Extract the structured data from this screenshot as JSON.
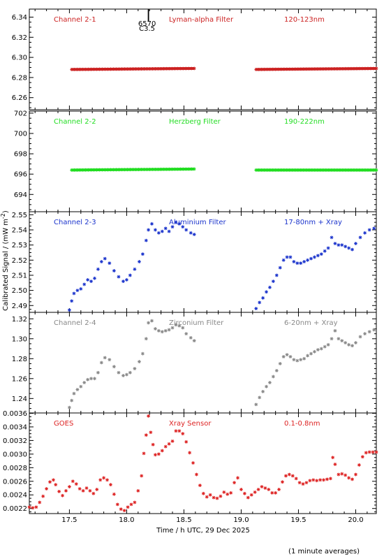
{
  "chart_data": {
    "type": "scatter",
    "xlabel": "Time / h UTC, 29 Dec 2025",
    "ylabel": "Calibrated Signal / (mW m",
    "ylabel_sup": "-2",
    "ylabel_end": ")",
    "footnote": "(1 minute averages)",
    "xlim": [
      17.15,
      20.18
    ],
    "x_ticks": [
      17.5,
      18.0,
      18.5,
      19.0,
      19.5,
      20.0
    ],
    "x_tick_labels": [
      "17.5",
      "18.0",
      "18.5",
      "19.0",
      "19.5",
      "20.0"
    ],
    "marker_text": [
      "6570",
      "C3.5"
    ],
    "marker_x": 18.19,
    "panels": [
      {
        "name": "Channel 2-1",
        "filter": "Lyman-alpha Filter",
        "band": "120-123nm",
        "color": "#cc2222",
        "ylim": [
          6.248,
          6.348
        ],
        "yticks": [
          6.26,
          6.28,
          6.3,
          6.32,
          6.34
        ],
        "ytick_labels": [
          "6.26",
          "6.28",
          "6.30",
          "6.32",
          "6.34"
        ],
        "segments": [
          {
            "x": [
              17.52,
              18.59
            ],
            "y": [
              6.288,
              6.289
            ]
          },
          {
            "x": [
              19.13,
              20.18
            ],
            "y": [
              6.288,
              6.289
            ]
          }
        ]
      },
      {
        "name": "Channel 2-2",
        "filter": "Herzberg Filter",
        "band": "190-222nm",
        "color": "#22dd22",
        "ylim": [
          692.3,
          702.2
        ],
        "yticks": [
          694,
          696,
          698,
          700,
          702
        ],
        "ytick_labels": [
          "694",
          "696",
          "698",
          "700",
          "702"
        ],
        "segments": [
          {
            "x": [
              17.52,
              18.59
            ],
            "y": [
              696.4,
              696.5
            ]
          },
          {
            "x": [
              19.13,
              20.18
            ],
            "y": [
              696.4,
              696.4
            ]
          }
        ]
      },
      {
        "name": "Channel 2-3",
        "filter": "Aluminium Filter",
        "band": "17-80nm + Xray",
        "color": "#1a33cc",
        "ylim": [
          2.4855,
          2.552
        ],
        "yticks": [
          2.49,
          2.5,
          2.51,
          2.52,
          2.53,
          2.54,
          2.55
        ],
        "ytick_labels": [
          "2.49",
          "2.50",
          "2.51",
          "2.52",
          "2.53",
          "2.54",
          "2.55"
        ],
        "points": [
          [
            17.5,
            2.487
          ],
          [
            17.52,
            2.493
          ],
          [
            17.54,
            2.498
          ],
          [
            17.57,
            2.5
          ],
          [
            17.6,
            2.501
          ],
          [
            17.63,
            2.504
          ],
          [
            17.66,
            2.507
          ],
          [
            17.69,
            2.506
          ],
          [
            17.72,
            2.508
          ],
          [
            17.75,
            2.514
          ],
          [
            17.78,
            2.519
          ],
          [
            17.81,
            2.521
          ],
          [
            17.85,
            2.518
          ],
          [
            17.89,
            2.513
          ],
          [
            17.93,
            2.509
          ],
          [
            17.97,
            2.506
          ],
          [
            18.0,
            2.507
          ],
          [
            18.03,
            2.51
          ],
          [
            18.07,
            2.514
          ],
          [
            18.11,
            2.519
          ],
          [
            18.14,
            2.524
          ],
          [
            18.17,
            2.533
          ],
          [
            18.19,
            2.54
          ],
          [
            18.22,
            2.544
          ],
          [
            18.25,
            2.54
          ],
          [
            18.28,
            2.538
          ],
          [
            18.31,
            2.539
          ],
          [
            18.34,
            2.541
          ],
          [
            18.37,
            2.539
          ],
          [
            18.4,
            2.542
          ],
          [
            18.43,
            2.545
          ],
          [
            18.46,
            2.544
          ],
          [
            18.49,
            2.542
          ],
          [
            18.52,
            2.54
          ],
          [
            18.56,
            2.538
          ],
          [
            18.59,
            2.537
          ],
          [
            19.13,
            2.488
          ],
          [
            19.16,
            2.492
          ],
          [
            19.19,
            2.495
          ],
          [
            19.22,
            2.499
          ],
          [
            19.25,
            2.502
          ],
          [
            19.28,
            2.506
          ],
          [
            19.31,
            2.51
          ],
          [
            19.34,
            2.515
          ],
          [
            19.37,
            2.52
          ],
          [
            19.4,
            2.522
          ],
          [
            19.43,
            2.522
          ],
          [
            19.46,
            2.519
          ],
          [
            19.49,
            2.518
          ],
          [
            19.52,
            2.518
          ],
          [
            19.55,
            2.519
          ],
          [
            19.58,
            2.52
          ],
          [
            19.61,
            2.521
          ],
          [
            19.64,
            2.522
          ],
          [
            19.67,
            2.523
          ],
          [
            19.7,
            2.524
          ],
          [
            19.73,
            2.526
          ],
          [
            19.76,
            2.528
          ],
          [
            19.79,
            2.535
          ],
          [
            19.82,
            2.531
          ],
          [
            19.85,
            2.53
          ],
          [
            19.88,
            2.53
          ],
          [
            19.91,
            2.529
          ],
          [
            19.94,
            2.528
          ],
          [
            19.97,
            2.527
          ],
          [
            20.0,
            2.531
          ],
          [
            20.04,
            2.535
          ],
          [
            20.08,
            2.538
          ],
          [
            20.12,
            2.54
          ],
          [
            20.16,
            2.541
          ]
        ]
      },
      {
        "name": "Channel 2-4",
        "filter": "Zirconium Filter",
        "band": "6-20nm + Xray",
        "color": "#888888",
        "ylim": [
          1.2255,
          1.3265
        ],
        "yticks": [
          1.24,
          1.26,
          1.28,
          1.3,
          1.32
        ],
        "ytick_labels": [
          "1.24",
          "1.26",
          "1.28",
          "1.30",
          "1.32"
        ],
        "points": [
          [
            17.5,
            1.231
          ],
          [
            17.52,
            1.238
          ],
          [
            17.54,
            1.245
          ],
          [
            17.57,
            1.249
          ],
          [
            17.6,
            1.252
          ],
          [
            17.63,
            1.256
          ],
          [
            17.66,
            1.259
          ],
          [
            17.69,
            1.26
          ],
          [
            17.72,
            1.26
          ],
          [
            17.75,
            1.266
          ],
          [
            17.78,
            1.276
          ],
          [
            17.81,
            1.281
          ],
          [
            17.85,
            1.279
          ],
          [
            17.89,
            1.272
          ],
          [
            17.93,
            1.266
          ],
          [
            17.97,
            1.263
          ],
          [
            18.0,
            1.264
          ],
          [
            18.03,
            1.266
          ],
          [
            18.07,
            1.27
          ],
          [
            18.11,
            1.277
          ],
          [
            18.14,
            1.285
          ],
          [
            18.17,
            1.3
          ],
          [
            18.19,
            1.316
          ],
          [
            18.22,
            1.318
          ],
          [
            18.25,
            1.31
          ],
          [
            18.28,
            1.308
          ],
          [
            18.31,
            1.307
          ],
          [
            18.34,
            1.308
          ],
          [
            18.37,
            1.309
          ],
          [
            18.4,
            1.311
          ],
          [
            18.43,
            1.314
          ],
          [
            18.46,
            1.313
          ],
          [
            18.49,
            1.311
          ],
          [
            18.52,
            1.305
          ],
          [
            18.56,
            1.301
          ],
          [
            18.59,
            1.298
          ],
          [
            19.13,
            1.234
          ],
          [
            19.16,
            1.241
          ],
          [
            19.19,
            1.247
          ],
          [
            19.22,
            1.252
          ],
          [
            19.25,
            1.256
          ],
          [
            19.28,
            1.262
          ],
          [
            19.31,
            1.268
          ],
          [
            19.34,
            1.275
          ],
          [
            19.37,
            1.282
          ],
          [
            19.4,
            1.284
          ],
          [
            19.43,
            1.282
          ],
          [
            19.46,
            1.279
          ],
          [
            19.49,
            1.278
          ],
          [
            19.52,
            1.279
          ],
          [
            19.55,
            1.28
          ],
          [
            19.58,
            1.283
          ],
          [
            19.61,
            1.285
          ],
          [
            19.64,
            1.287
          ],
          [
            19.67,
            1.289
          ],
          [
            19.7,
            1.29
          ],
          [
            19.73,
            1.292
          ],
          [
            19.76,
            1.294
          ],
          [
            19.79,
            1.3
          ],
          [
            19.82,
            1.308
          ],
          [
            19.85,
            1.3
          ],
          [
            19.88,
            1.298
          ],
          [
            19.91,
            1.296
          ],
          [
            19.94,
            1.294
          ],
          [
            19.97,
            1.293
          ],
          [
            20.0,
            1.296
          ],
          [
            20.04,
            1.302
          ],
          [
            20.08,
            1.305
          ],
          [
            20.12,
            1.307
          ],
          [
            20.16,
            1.309
          ]
        ]
      },
      {
        "name": "GOES",
        "filter": "Xray Sensor",
        "band": "0.1-0.8nm",
        "color": "#dd2222",
        "ylim": [
          0.002125,
          0.003605
        ],
        "yticks": [
          0.0022,
          0.0024,
          0.0026,
          0.0028,
          0.003,
          0.0032,
          0.0034,
          0.0036
        ],
        "ytick_labels": [
          "0.0022",
          "0.0024",
          "0.0026",
          "0.0028",
          "0.0030",
          "0.0032",
          "0.0034",
          "0.0036"
        ],
        "points": [
          [
            17.15,
            0.00222
          ],
          [
            17.18,
            0.00221
          ],
          [
            17.21,
            0.00222
          ],
          [
            17.24,
            0.00229
          ],
          [
            17.27,
            0.00238
          ],
          [
            17.3,
            0.00249
          ],
          [
            17.33,
            0.00259
          ],
          [
            17.36,
            0.00262
          ],
          [
            17.38,
            0.00255
          ],
          [
            17.41,
            0.00245
          ],
          [
            17.44,
            0.00239
          ],
          [
            17.47,
            0.00246
          ],
          [
            17.5,
            0.00252
          ],
          [
            17.53,
            0.0026
          ],
          [
            17.56,
            0.00256
          ],
          [
            17.59,
            0.00249
          ],
          [
            17.62,
            0.00246
          ],
          [
            17.65,
            0.0025
          ],
          [
            17.68,
            0.00246
          ],
          [
            17.71,
            0.00242
          ],
          [
            17.74,
            0.00248
          ],
          [
            17.77,
            0.00262
          ],
          [
            17.8,
            0.00265
          ],
          [
            17.83,
            0.00262
          ],
          [
            17.86,
            0.00255
          ],
          [
            17.89,
            0.00241
          ],
          [
            17.92,
            0.00226
          ],
          [
            17.95,
            0.00219
          ],
          [
            17.98,
            0.00217
          ],
          [
            18.01,
            0.00222
          ],
          [
            18.04,
            0.00226
          ],
          [
            18.07,
            0.00229
          ],
          [
            18.1,
            0.00246
          ],
          [
            18.13,
            0.00268
          ],
          [
            18.15,
            0.00301
          ],
          [
            18.17,
            0.00328
          ],
          [
            18.19,
            0.00356
          ],
          [
            18.21,
            0.00332
          ],
          [
            18.23,
            0.00314
          ],
          [
            18.25,
            0.00299
          ],
          [
            18.28,
            0.003
          ],
          [
            18.31,
            0.00305
          ],
          [
            18.34,
            0.00311
          ],
          [
            18.37,
            0.00315
          ],
          [
            18.4,
            0.00319
          ],
          [
            18.43,
            0.00334
          ],
          [
            18.46,
            0.00334
          ],
          [
            18.49,
            0.0033
          ],
          [
            18.52,
            0.00318
          ],
          [
            18.55,
            0.00302
          ],
          [
            18.58,
            0.00287
          ],
          [
            18.61,
            0.0027
          ],
          [
            18.64,
            0.00254
          ],
          [
            18.67,
            0.00242
          ],
          [
            18.7,
            0.00237
          ],
          [
            18.73,
            0.0024
          ],
          [
            18.76,
            0.00236
          ],
          [
            18.79,
            0.00235
          ],
          [
            18.82,
            0.00238
          ],
          [
            18.85,
            0.00244
          ],
          [
            18.88,
            0.00241
          ],
          [
            18.91,
            0.00243
          ],
          [
            18.94,
            0.00258
          ],
          [
            18.97,
            0.00265
          ],
          [
            19.0,
            0.00248
          ],
          [
            19.03,
            0.00242
          ],
          [
            19.06,
            0.00236
          ],
          [
            19.09,
            0.0024
          ],
          [
            19.12,
            0.00244
          ],
          [
            19.15,
            0.00248
          ],
          [
            19.18,
            0.00252
          ],
          [
            19.21,
            0.0025
          ],
          [
            19.24,
            0.00248
          ],
          [
            19.27,
            0.00243
          ],
          [
            19.3,
            0.00243
          ],
          [
            19.33,
            0.00248
          ],
          [
            19.36,
            0.00259
          ],
          [
            19.39,
            0.00268
          ],
          [
            19.42,
            0.0027
          ],
          [
            19.45,
            0.00268
          ],
          [
            19.48,
            0.00264
          ],
          [
            19.51,
            0.00258
          ],
          [
            19.54,
            0.00256
          ],
          [
            19.57,
            0.00258
          ],
          [
            19.6,
            0.00261
          ],
          [
            19.63,
            0.00262
          ],
          [
            19.66,
            0.00261
          ],
          [
            19.69,
            0.00262
          ],
          [
            19.72,
            0.00262
          ],
          [
            19.75,
            0.00263
          ],
          [
            19.78,
            0.00264
          ],
          [
            19.8,
            0.00295
          ],
          [
            19.82,
            0.00285
          ],
          [
            19.85,
            0.0027
          ],
          [
            19.88,
            0.00271
          ],
          [
            19.91,
            0.00269
          ],
          [
            19.94,
            0.00265
          ],
          [
            19.97,
            0.00263
          ],
          [
            20.0,
            0.0027
          ],
          [
            20.03,
            0.00284
          ],
          [
            20.06,
            0.00296
          ],
          [
            20.09,
            0.00302
          ],
          [
            20.12,
            0.00303
          ],
          [
            20.15,
            0.00303
          ],
          [
            20.18,
            0.00303
          ]
        ]
      }
    ]
  }
}
